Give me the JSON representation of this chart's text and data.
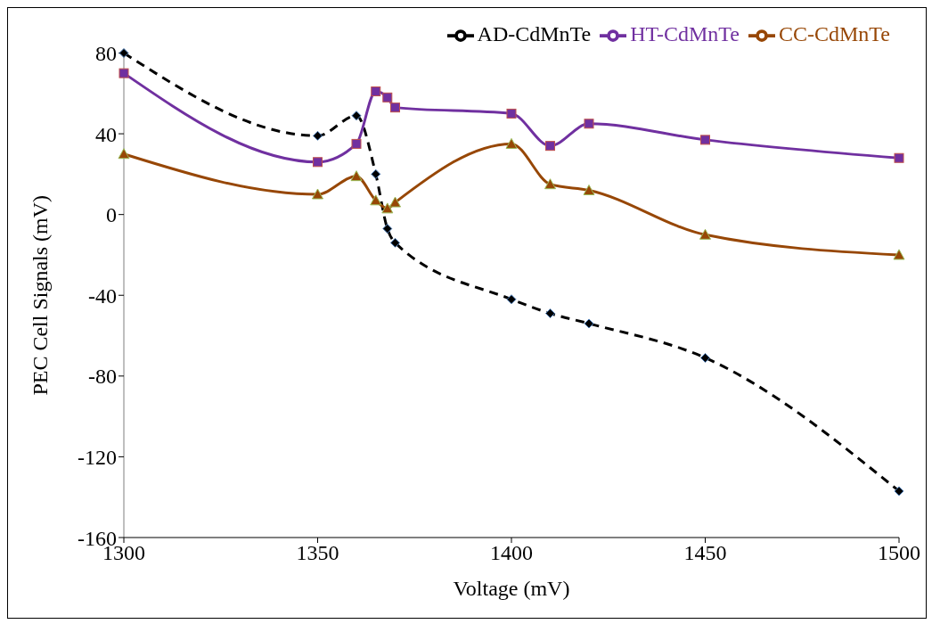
{
  "chart_data": {
    "type": "line",
    "xlabel": "Voltage (mV)",
    "ylabel": "PEC Cell Signals (mV)",
    "x": [
      1300,
      1350,
      1360,
      1365,
      1368,
      1370,
      1400,
      1410,
      1420,
      1450,
      1500
    ],
    "series": [
      {
        "name": "AD-CdMnTe",
        "color": "#000000",
        "line_style": "dashed",
        "marker": "diamond",
        "values": [
          80,
          39,
          49,
          20,
          -7,
          -14,
          -42,
          -49,
          -54,
          -71,
          -137
        ]
      },
      {
        "name": "HT-CdMnTe",
        "color": "#7030a0",
        "line_style": "solid",
        "marker": "square",
        "values": [
          70,
          26,
          35,
          61,
          58,
          53,
          50,
          34,
          45,
          37,
          28
        ]
      },
      {
        "name": "CC-CdMnTe",
        "color": "#974706",
        "line_style": "solid",
        "marker": "triangle",
        "values": [
          30,
          10,
          19,
          7,
          3,
          6,
          35,
          15,
          12,
          -10,
          -20
        ]
      }
    ],
    "xlim": [
      1300,
      1500
    ],
    "xticks": [
      1300,
      1350,
      1400,
      1450,
      1500
    ],
    "ylim": [
      -160,
      80
    ],
    "yticks": [
      -160,
      -120,
      -80,
      -40,
      0,
      40,
      80
    ],
    "grid": false,
    "legend": "top right"
  }
}
